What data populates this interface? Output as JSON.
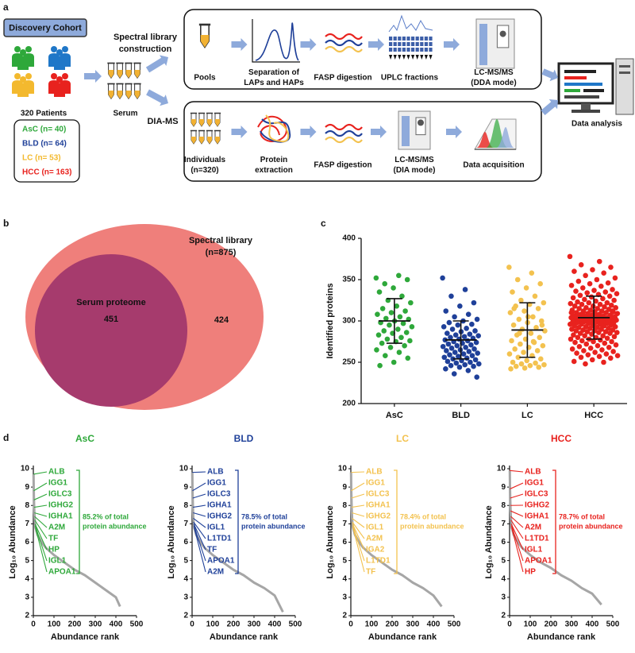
{
  "panel_letters": [
    "a",
    "b",
    "c",
    "d"
  ],
  "panel_a": {
    "cohort": "Discovery Cohort",
    "patients": "320 Patients",
    "groups": [
      "AsC (n= 40)",
      "BLD (n= 64)",
      "LC (n= 53)",
      "HCC (n= 163)"
    ],
    "serum": "Serum",
    "library_branch": [
      "Spectral library",
      "construction"
    ],
    "dia_branch": "DIA-MS",
    "library_steps": [
      [
        "Pools"
      ],
      [
        "Separation of",
        "LAPs and HAPs"
      ],
      [
        "FASP digestion"
      ],
      [
        "UPLC fractions"
      ],
      [
        "LC-MS/MS",
        "(DDA mode)"
      ]
    ],
    "dia_steps": [
      [
        "Individuals",
        "(n=320)"
      ],
      [
        "Protein",
        "extraction"
      ],
      [
        "FASP digestion"
      ],
      [
        "LC-MS/MS",
        "(DIA mode)"
      ],
      [
        "Data acquisition"
      ]
    ],
    "output": "Data analysis"
  },
  "panel_b": {
    "outer_label": [
      "Spectral library",
      "(n=875)"
    ],
    "inner_label": "Serum proteome",
    "inner_count": 451,
    "outer_only_count": 424
  },
  "chart_data": [
    {
      "type": "strip",
      "ylabel": "Identified proteins",
      "ylim": [
        200,
        400
      ],
      "yticks": [
        200,
        250,
        300,
        350,
        400
      ],
      "series": [
        {
          "name": "AsC",
          "color": "#2ea83a",
          "values": [
            352,
            355,
            345,
            350,
            340,
            335,
            330,
            325,
            322,
            318,
            315,
            312,
            310,
            308,
            305,
            303,
            302,
            300,
            298,
            297,
            295,
            293,
            290,
            288,
            286,
            285,
            283,
            280,
            278,
            276,
            275,
            273,
            270,
            268,
            265,
            262,
            258,
            255,
            250,
            246
          ]
        },
        {
          "name": "BLD",
          "color": "#1f4099",
          "values": [
            352,
            338,
            330,
            322,
            318,
            312,
            308,
            305,
            302,
            300,
            298,
            296,
            295,
            293,
            291,
            290,
            288,
            287,
            285,
            284,
            283,
            282,
            281,
            280,
            279,
            278,
            277,
            276,
            275,
            274,
            273,
            272,
            271,
            270,
            269,
            268,
            267,
            266,
            265,
            264,
            263,
            262,
            261,
            260,
            259,
            258,
            257,
            256,
            255,
            254,
            253,
            252,
            251,
            250,
            249,
            248,
            247,
            246,
            245,
            244,
            242,
            240,
            236,
            232
          ]
        },
        {
          "name": "LC",
          "color": "#f3c24f",
          "values": [
            365,
            358,
            350,
            345,
            340,
            335,
            330,
            325,
            322,
            320,
            318,
            315,
            312,
            310,
            305,
            302,
            300,
            298,
            295,
            292,
            290,
            288,
            285,
            283,
            280,
            278,
            276,
            274,
            272,
            270,
            268,
            266,
            264,
            262,
            260,
            258,
            256,
            254,
            252,
            250,
            249,
            248,
            247,
            246,
            245,
            244,
            243,
            242,
            275,
            285,
            295,
            305,
            315
          ]
        },
        {
          "name": "HCC",
          "color": "#e8221e",
          "values": [
            378,
            372,
            368,
            365,
            362,
            360,
            358,
            355,
            352,
            350,
            348,
            346,
            345,
            343,
            342,
            340,
            338,
            337,
            336,
            335,
            334,
            333,
            332,
            331,
            330,
            329,
            328,
            327,
            326,
            325,
            324,
            323,
            322,
            322,
            321,
            320,
            320,
            319,
            318,
            318,
            317,
            316,
            316,
            315,
            315,
            314,
            313,
            313,
            312,
            312,
            311,
            311,
            310,
            310,
            309,
            309,
            308,
            308,
            307,
            307,
            306,
            306,
            306,
            305,
            305,
            305,
            304,
            304,
            304,
            303,
            303,
            303,
            302,
            302,
            302,
            301,
            301,
            301,
            300,
            300,
            300,
            299,
            299,
            299,
            298,
            298,
            298,
            297,
            297,
            296,
            296,
            296,
            295,
            295,
            294,
            294,
            293,
            293,
            292,
            292,
            291,
            291,
            290,
            290,
            289,
            289,
            288,
            288,
            287,
            287,
            286,
            286,
            285,
            285,
            284,
            283,
            282,
            282,
            281,
            280,
            280,
            279,
            278,
            278,
            277,
            276,
            275,
            275,
            274,
            273,
            272,
            271,
            270,
            269,
            268,
            267,
            266,
            265,
            264,
            263,
            262,
            261,
            260,
            259,
            258,
            257,
            256,
            255,
            253,
            251,
            250,
            248,
            304,
            306,
            302,
            300,
            298,
            310,
            296,
            308,
            312,
            294,
            305
          ]
        }
      ],
      "means": [
        300,
        277,
        289,
        304
      ],
      "sd": [
        27,
        23,
        33,
        26
      ]
    },
    {
      "type": "line",
      "title": "AsC",
      "color": "#2ea83a",
      "xlabel": "Abundance rank",
      "ylabel": "Log₁₀ Abundance",
      "xlim": [
        0,
        500
      ],
      "xticks": [
        0,
        100,
        200,
        300,
        400,
        500
      ],
      "ylim": [
        2,
        10
      ],
      "yticks": [
        2,
        3,
        4,
        5,
        6,
        7,
        8,
        9,
        10
      ],
      "x": [
        1,
        2,
        3,
        4,
        5,
        6,
        7,
        8,
        9,
        10,
        20,
        40,
        60,
        80,
        100,
        150,
        200,
        250,
        300,
        350,
        400,
        420
      ],
      "values": [
        9.7,
        8.8,
        8.3,
        7.9,
        7.6,
        7.4,
        7.2,
        7.0,
        6.9,
        6.8,
        6.4,
        6.0,
        5.7,
        5.5,
        5.3,
        4.9,
        4.5,
        4.2,
        3.8,
        3.4,
        3.0,
        2.5
      ],
      "proteins": [
        "ALB",
        "IGG1",
        "IGLC3",
        "IGHG2",
        "IGHA1",
        "A2M",
        "TF",
        "HP",
        "IGL1",
        "APOA1"
      ],
      "annotation": [
        "85.2% of total",
        "protein abundance"
      ]
    },
    {
      "type": "line",
      "title": "BLD",
      "color": "#1f4099",
      "xlabel": "Abundance rank",
      "ylabel": "Log₁₀ Abundance",
      "xlim": [
        0,
        500
      ],
      "xticks": [
        0,
        100,
        200,
        300,
        400,
        500
      ],
      "ylim": [
        2,
        10
      ],
      "yticks": [
        2,
        3,
        4,
        5,
        6,
        7,
        8,
        9,
        10
      ],
      "x": [
        1,
        2,
        3,
        4,
        5,
        6,
        7,
        8,
        9,
        10,
        20,
        40,
        60,
        80,
        100,
        150,
        200,
        250,
        300,
        350,
        400,
        440
      ],
      "values": [
        9.8,
        8.8,
        8.4,
        7.9,
        7.6,
        7.3,
        7.1,
        7.0,
        6.9,
        6.8,
        6.4,
        6.0,
        5.7,
        5.5,
        5.3,
        4.9,
        4.5,
        4.2,
        3.8,
        3.5,
        3.1,
        2.2
      ],
      "proteins": [
        "ALB",
        "IGG1",
        "IGLC3",
        "IGHA1",
        "IGHG2",
        "IGL1",
        "L1TD1",
        "TF",
        "APOA1",
        "A2M"
      ],
      "annotation": [
        "78.5% of total",
        "protein abundance"
      ]
    },
    {
      "type": "line",
      "title": "LC",
      "color": "#f3c24f",
      "xlabel": "Abundance rank",
      "ylabel": "Log₁₀ Abundance",
      "xlim": [
        0,
        500
      ],
      "xticks": [
        0,
        100,
        200,
        300,
        400,
        500
      ],
      "ylim": [
        2,
        10
      ],
      "yticks": [
        2,
        3,
        4,
        5,
        6,
        7,
        8,
        9,
        10
      ],
      "x": [
        1,
        2,
        3,
        4,
        5,
        6,
        7,
        8,
        9,
        10,
        20,
        40,
        60,
        80,
        100,
        150,
        200,
        250,
        300,
        350,
        400,
        440
      ],
      "values": [
        9.8,
        8.8,
        8.4,
        7.9,
        7.6,
        7.3,
        7.1,
        7.0,
        6.9,
        6.8,
        6.4,
        6.0,
        5.7,
        5.5,
        5.3,
        4.9,
        4.5,
        4.2,
        3.8,
        3.5,
        3.1,
        2.5
      ],
      "proteins": [
        "ALB",
        "IGG1",
        "IGLC3",
        "IGHA1",
        "IGHG2",
        "IGL1",
        "A2M",
        "IGA2",
        "L1TD1",
        "TF"
      ],
      "annotation": [
        "78.4% of total",
        "protein abundance"
      ]
    },
    {
      "type": "line",
      "title": "HCC",
      "color": "#e8221e",
      "xlabel": "Abundance rank",
      "ylabel": "Log₁₀ Abundance",
      "xlim": [
        0,
        500
      ],
      "xticks": [
        0,
        100,
        200,
        300,
        400,
        500
      ],
      "ylim": [
        2,
        10
      ],
      "yticks": [
        2,
        3,
        4,
        5,
        6,
        7,
        8,
        9,
        10
      ],
      "x": [
        1,
        2,
        3,
        4,
        5,
        6,
        7,
        8,
        9,
        10,
        20,
        40,
        60,
        80,
        100,
        150,
        200,
        250,
        300,
        350,
        400,
        445
      ],
      "values": [
        9.9,
        8.9,
        8.4,
        8.0,
        7.7,
        7.4,
        7.2,
        7.0,
        6.9,
        6.8,
        6.4,
        6.0,
        5.7,
        5.5,
        5.3,
        4.9,
        4.6,
        4.2,
        3.9,
        3.5,
        3.2,
        2.6
      ],
      "proteins": [
        "ALB",
        "IGG1",
        "IGLC3",
        "IGHG2",
        "IGHA1",
        "A2M",
        "L1TD1",
        "IGL1",
        "APOA1",
        "HP"
      ],
      "annotation": [
        "78.7% of total",
        "protein abundance"
      ]
    }
  ]
}
